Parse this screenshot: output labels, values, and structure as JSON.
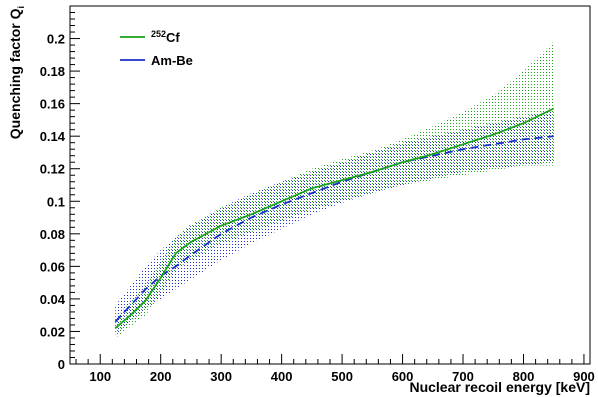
{
  "chart_data": {
    "type": "line",
    "title": "",
    "xlabel": "Nuclear recoil energy [keV]",
    "ylabel_main": "Quenching factor Q",
    "ylabel_sub": "i",
    "xlim": [
      50,
      910
    ],
    "ylim": [
      0,
      0.22
    ],
    "x_ticks": [
      100,
      200,
      300,
      400,
      500,
      600,
      700,
      800,
      900
    ],
    "x_tick_labels": [
      "100",
      "200",
      "300",
      "400",
      "500",
      "600",
      "700",
      "800",
      "900"
    ],
    "y_ticks": [
      0,
      0.02,
      0.04,
      0.06,
      0.08,
      0.1,
      0.12,
      0.14,
      0.16,
      0.18,
      0.2
    ],
    "y_tick_labels": [
      "0",
      "0.02",
      "0.04",
      "0.06",
      "0.08",
      "0.1",
      "0.12",
      "0.14",
      "0.16",
      "0.18",
      "0.2"
    ],
    "grid": false,
    "legend_position": "top-left",
    "series": [
      {
        "name_sup": "252",
        "name_main": "Cf",
        "color": "#1aa31a",
        "line_style": "solid",
        "x": [
          125,
          150,
          175,
          200,
          225,
          250,
          300,
          350,
          400,
          450,
          500,
          550,
          600,
          650,
          700,
          750,
          800,
          850
        ],
        "y": [
          0.022,
          0.03,
          0.039,
          0.053,
          0.068,
          0.075,
          0.085,
          0.092,
          0.1,
          0.108,
          0.113,
          0.118,
          0.124,
          0.129,
          0.135,
          0.141,
          0.148,
          0.157
        ],
        "band_upper": [
          0.028,
          0.038,
          0.049,
          0.063,
          0.078,
          0.086,
          0.096,
          0.104,
          0.112,
          0.12,
          0.126,
          0.131,
          0.138,
          0.146,
          0.155,
          0.165,
          0.18,
          0.198
        ],
        "band_lower": [
          0.016,
          0.023,
          0.03,
          0.043,
          0.058,
          0.064,
          0.074,
          0.081,
          0.088,
          0.095,
          0.1,
          0.105,
          0.11,
          0.113,
          0.116,
          0.119,
          0.122,
          0.122
        ]
      },
      {
        "name": "Am-Be",
        "color": "#1a2ecc",
        "line_style": "dashed",
        "x": [
          125,
          150,
          175,
          200,
          225,
          250,
          300,
          350,
          400,
          450,
          500,
          550,
          600,
          650,
          700,
          750,
          800,
          850
        ],
        "y": [
          0.026,
          0.036,
          0.046,
          0.054,
          0.06,
          0.067,
          0.08,
          0.09,
          0.098,
          0.105,
          0.112,
          0.118,
          0.124,
          0.128,
          0.132,
          0.135,
          0.138,
          0.14
        ],
        "band_upper": [
          0.036,
          0.048,
          0.06,
          0.07,
          0.078,
          0.085,
          0.096,
          0.105,
          0.112,
          0.118,
          0.124,
          0.13,
          0.136,
          0.14,
          0.144,
          0.148,
          0.152,
          0.156
        ],
        "band_lower": [
          0.018,
          0.026,
          0.034,
          0.04,
          0.046,
          0.052,
          0.064,
          0.074,
          0.083,
          0.092,
          0.099,
          0.105,
          0.11,
          0.114,
          0.118,
          0.12,
          0.122,
          0.124
        ]
      }
    ]
  }
}
